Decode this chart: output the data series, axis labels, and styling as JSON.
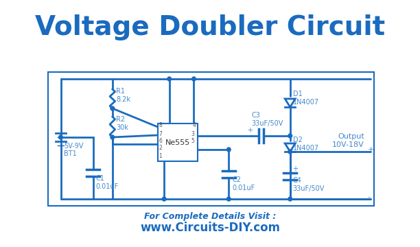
{
  "title": "Voltage Doubler Circuit",
  "title_color": "#1a6bbf",
  "title_fontsize": 28,
  "title_fontweight": "bold",
  "bg_color": "#ffffff",
  "line_color": "#1a6bbf",
  "line_width": 2.0,
  "component_color": "#1a6bbf",
  "label_color": "#4488cc",
  "label_fontsize": 7,
  "footer_text1": "For Complete Details Visit :",
  "footer_text2": "www.Circuits-DIY.com",
  "footer_color": "#1a6bbf",
  "footer_fontsize1": 9,
  "footer_fontsize2": 12
}
